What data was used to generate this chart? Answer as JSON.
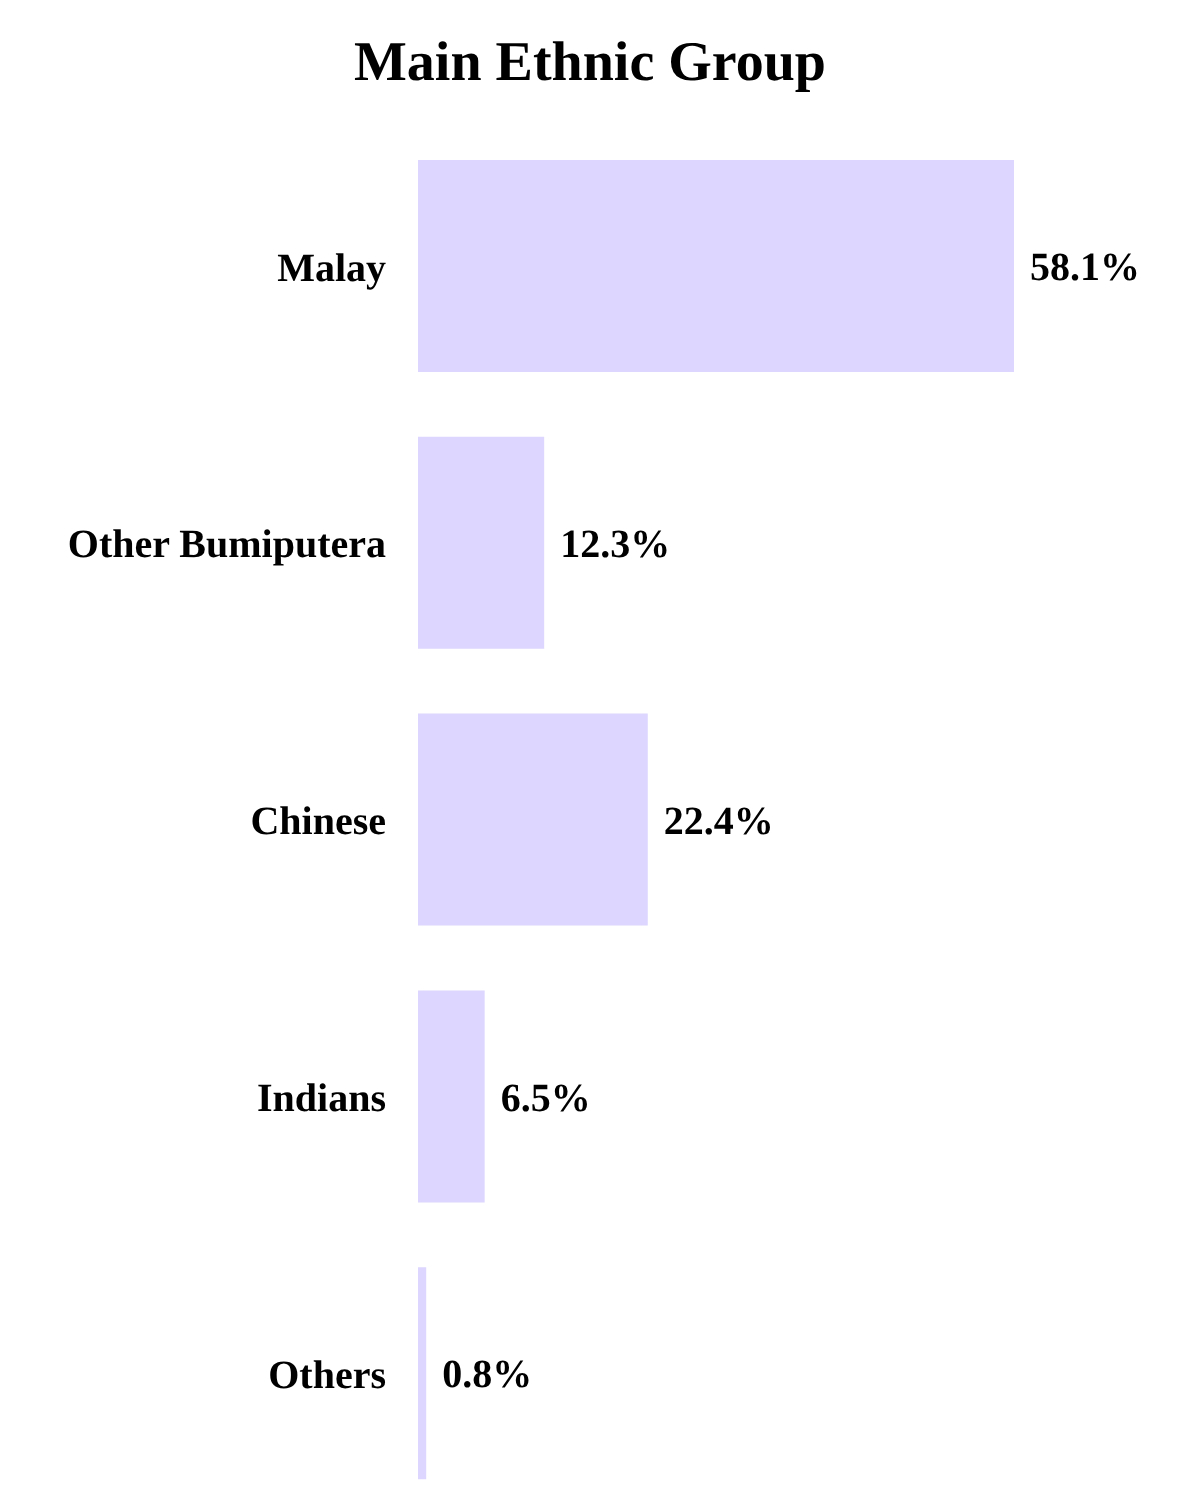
{
  "chart_data": {
    "type": "bar",
    "orientation": "horizontal",
    "title": "Main Ethnic Group",
    "categories": [
      "Malay",
      "Other Bumiputera",
      "Chinese",
      "Indians",
      "Others"
    ],
    "values": [
      58.1,
      12.3,
      22.4,
      6.5,
      0.8
    ],
    "value_labels": [
      "58.1%",
      "12.3%",
      "22.4%",
      "6.5%",
      "0.8%"
    ],
    "color": "#ddd6fe",
    "grid": false,
    "legend": false
  }
}
